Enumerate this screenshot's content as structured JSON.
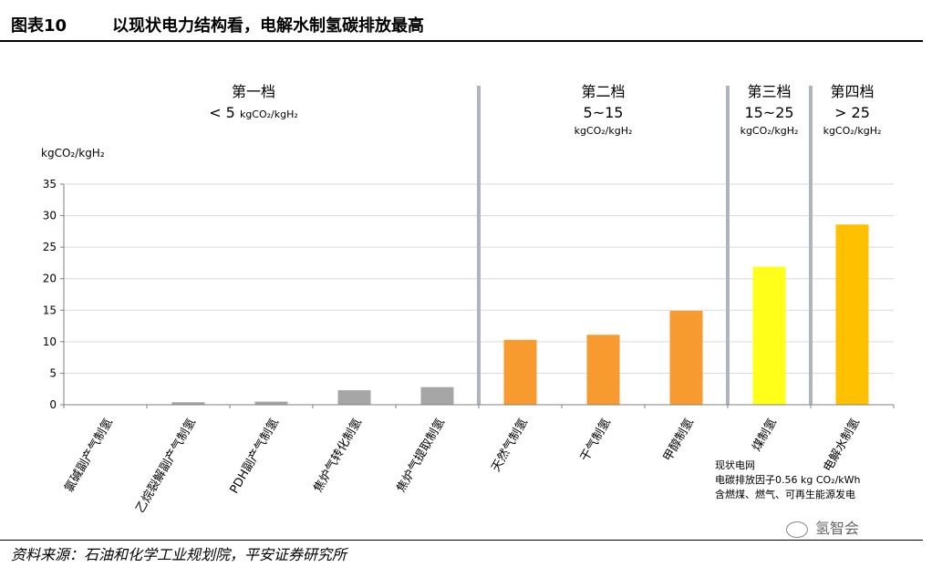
{
  "header": {
    "label": "图表10",
    "title": "以现状电力结构看，电解水制氢碳排放最高"
  },
  "chart_data": {
    "type": "bar",
    "ylabel": "kgCO₂/kgH₂",
    "ylim": [
      0,
      35
    ],
    "yticks": [
      0,
      5,
      10,
      15,
      20,
      25,
      30,
      35
    ],
    "grid": true,
    "categories": [
      "氯碱副产气制氢",
      "乙烷裂解副产气制氢",
      "PDH副产气制氢",
      "焦炉气转化制氢",
      "焦炉气提取制氢",
      "天然气制氢",
      "干气制氢",
      "甲醇制氢",
      "煤制氢",
      "电解水制氢"
    ],
    "values": [
      0.05,
      0.4,
      0.5,
      2.3,
      2.8,
      10.3,
      11.1,
      14.9,
      21.9,
      28.6
    ],
    "bar_colors": [
      "#a6a6a6",
      "#a6a6a6",
      "#a6a6a6",
      "#a6a6a6",
      "#a6a6a6",
      "#f79a30",
      "#f79a30",
      "#f79a30",
      "#ffff1a",
      "#ffc000"
    ],
    "groups": [
      {
        "name": "第一档",
        "range_prefix": "< 5",
        "range_unit": "kgCO₂/kgH₂",
        "first_index": 0,
        "last_index": 4
      },
      {
        "name": "第二档",
        "range": "5~15",
        "unit": "kgCO₂/kgH₂",
        "first_index": 5,
        "last_index": 7
      },
      {
        "name": "第三档",
        "range": "15~25",
        "unit": "kgCO₂/kgH₂",
        "first_index": 8,
        "last_index": 8
      },
      {
        "name": "第四档",
        "range": "> 25",
        "unit": "kgCO₂/kgH₂",
        "first_index": 9,
        "last_index": 9
      }
    ],
    "annotation": [
      "现状电网",
      "电碳排放因子0.56 kg CO₂/kWh",
      "含燃煤、燃气、可再生能源发电"
    ]
  },
  "source": "资料来源：石油和化学工业规划院，平安证券研究所",
  "watermark": "氢智会",
  "colors": {
    "grid": "#d9d9d9",
    "axis": "#808080",
    "divider": "#aeb5bf"
  }
}
